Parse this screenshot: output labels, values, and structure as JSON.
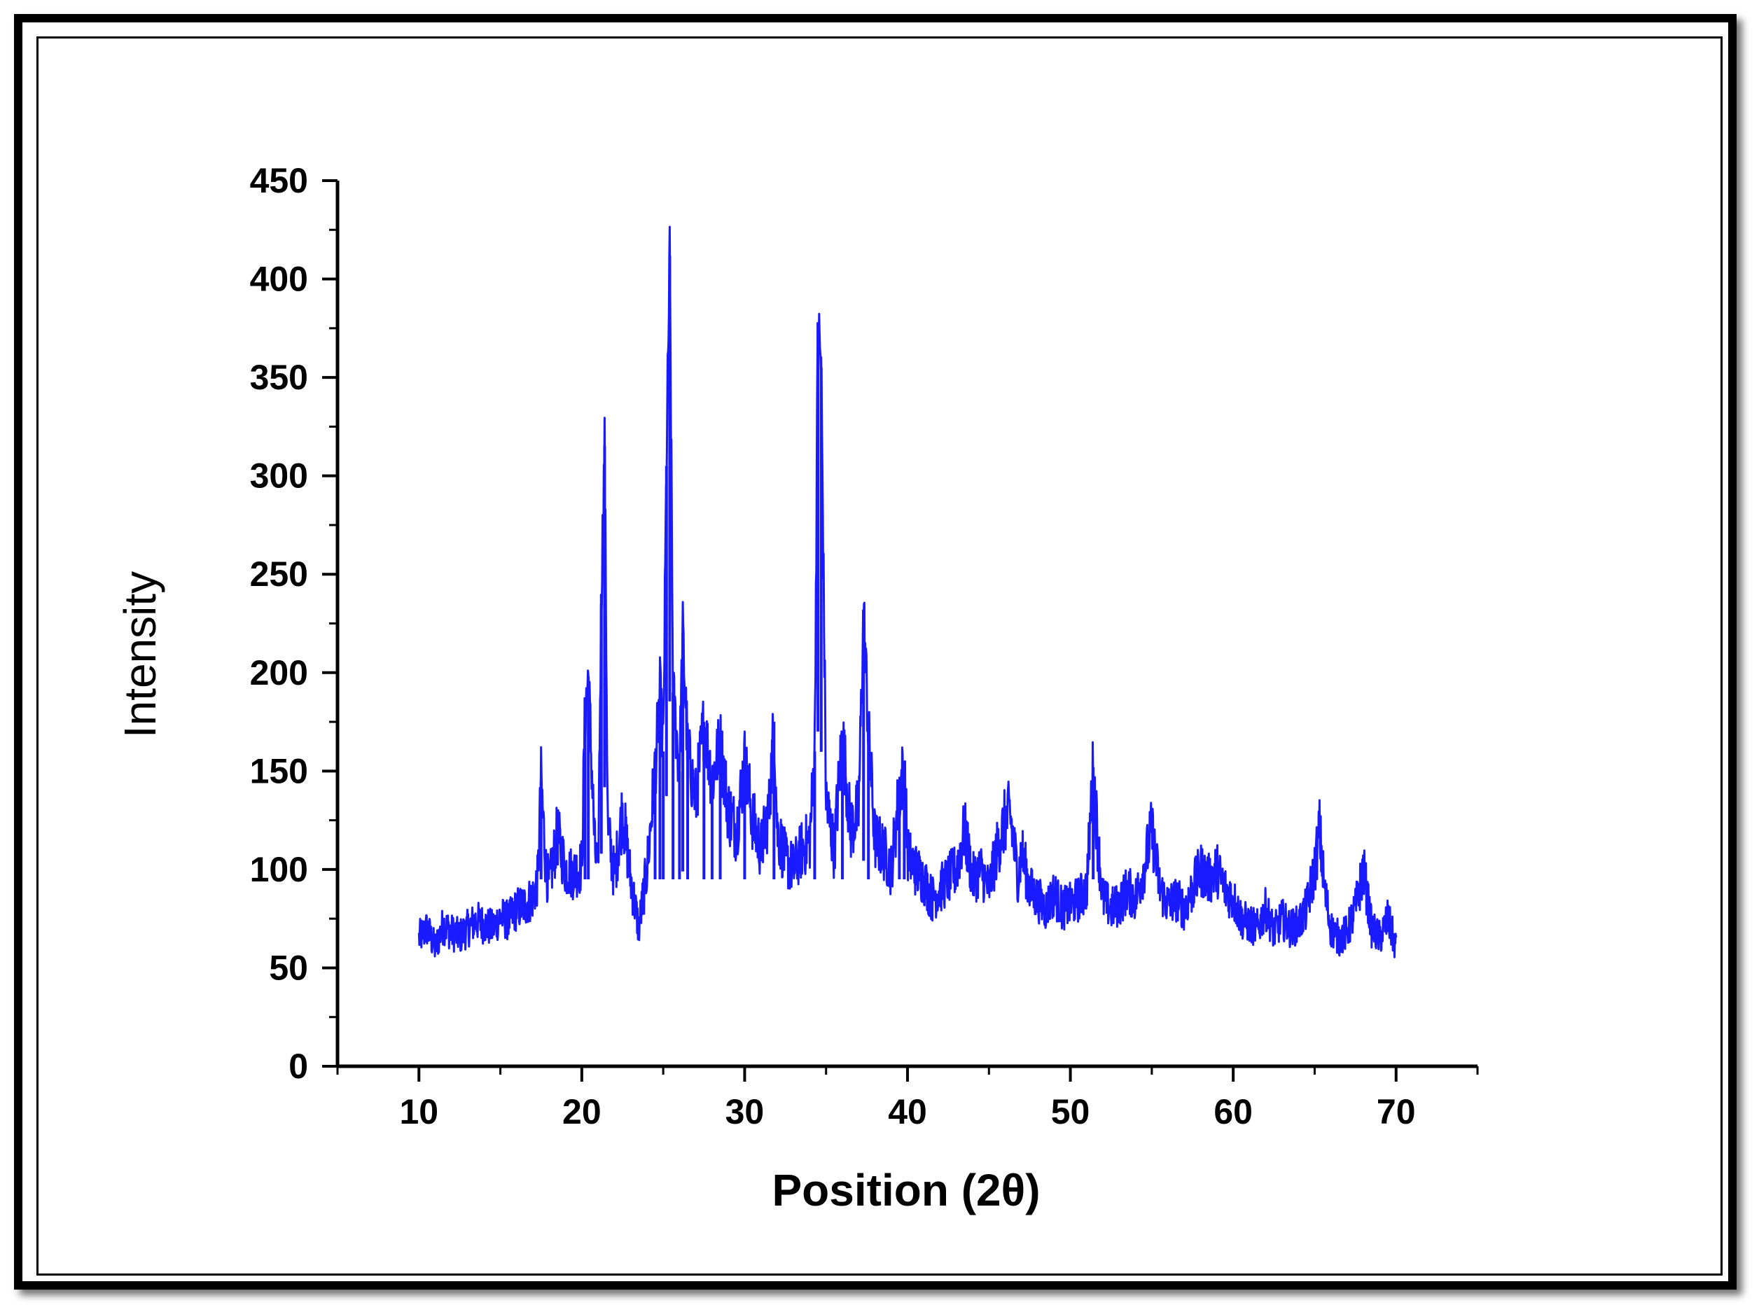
{
  "chart_data": {
    "type": "line",
    "title": "",
    "xlabel": "Position (2θ)",
    "ylabel": "Intensity",
    "xlim": [
      5,
      75
    ],
    "ylim": [
      0,
      450
    ],
    "x_ticks": [
      10,
      20,
      30,
      40,
      50,
      60,
      70
    ],
    "y_ticks": [
      0,
      50,
      100,
      150,
      200,
      250,
      300,
      350,
      400,
      450
    ],
    "grid": false,
    "legend": "none",
    "line_color": "#1a1aff",
    "series": [
      {
        "x": [
          10.0,
          10.5,
          11.0,
          11.5,
          12.0,
          12.5,
          13.0,
          13.5,
          14.0,
          14.5,
          15.0,
          15.5,
          16.0,
          16.5,
          17.0,
          17.3,
          17.5,
          17.8,
          18.0,
          18.5,
          19.0,
          19.5,
          20.0,
          20.2,
          20.4,
          20.8,
          21.0,
          21.2,
          21.4,
          21.6,
          22.0,
          22.5,
          23.0,
          23.5,
          24.0,
          24.5,
          24.8,
          25.0,
          25.2,
          25.4,
          25.6,
          26.0,
          26.2,
          26.5,
          27.0,
          27.5,
          28.0,
          28.5,
          29.0,
          29.5,
          30.0,
          30.5,
          31.0,
          31.5,
          31.8,
          32.0,
          32.5,
          33.0,
          33.5,
          34.0,
          34.3,
          34.5,
          34.7,
          35.0,
          35.5,
          36.0,
          36.5,
          37.0,
          37.3,
          37.6,
          38.0,
          38.5,
          39.0,
          39.5,
          39.8,
          40.0,
          40.5,
          41.0,
          41.5,
          42.0,
          42.5,
          43.0,
          43.5,
          44.0,
          44.5,
          45.0,
          45.5,
          46.0,
          46.3,
          46.8,
          47.0,
          47.5,
          48.0,
          48.5,
          49.0,
          49.5,
          50.0,
          50.5,
          51.0,
          51.4,
          51.7,
          52.0,
          52.5,
          53.0,
          53.5,
          54.0,
          54.5,
          55.0,
          55.5,
          56.0,
          56.5,
          57.0,
          57.5,
          58.0,
          58.5,
          59.0,
          59.5,
          60.0,
          60.5,
          61.0,
          61.5,
          62.0,
          62.5,
          63.0,
          63.5,
          64.0,
          64.5,
          65.0,
          65.3,
          65.6,
          66.0,
          66.5,
          67.0,
          67.5,
          68.0,
          68.5,
          69.0,
          69.5,
          70.0
        ],
        "y": [
          65,
          70,
          60,
          72,
          68,
          66,
          70,
          74,
          72,
          70,
          76,
          74,
          80,
          82,
          86,
          95,
          145,
          100,
          92,
          118,
          100,
          98,
          102,
          180,
          198,
          110,
          98,
          240,
          315,
          120,
          96,
          130,
          95,
          70,
          100,
          150,
          190,
          160,
          305,
          412,
          190,
          150,
          220,
          160,
          135,
          175,
          145,
          165,
          130,
          120,
          155,
          125,
          110,
          130,
          175,
          120,
          105,
          100,
          110,
          115,
          160,
          378,
          355,
          135,
          110,
          170,
          120,
          130,
          232,
          170,
          115,
          110,
          100,
          140,
          152,
          108,
          100,
          95,
          85,
          90,
          95,
          100,
          120,
          95,
          100,
          90,
          110,
          125,
          128,
          95,
          110,
          90,
          85,
          80,
          88,
          80,
          82,
          85,
          90,
          152,
          112,
          85,
          80,
          82,
          90,
          85,
          100,
          120,
          90,
          82,
          85,
          80,
          90,
          100,
          95,
          100,
          90,
          85,
          75,
          72,
          70,
          80,
          68,
          75,
          70,
          72,
          80,
          100,
          120,
          90,
          70,
          65,
          68,
          80,
          100,
          70,
          65,
          75,
          60
        ]
      }
    ]
  }
}
